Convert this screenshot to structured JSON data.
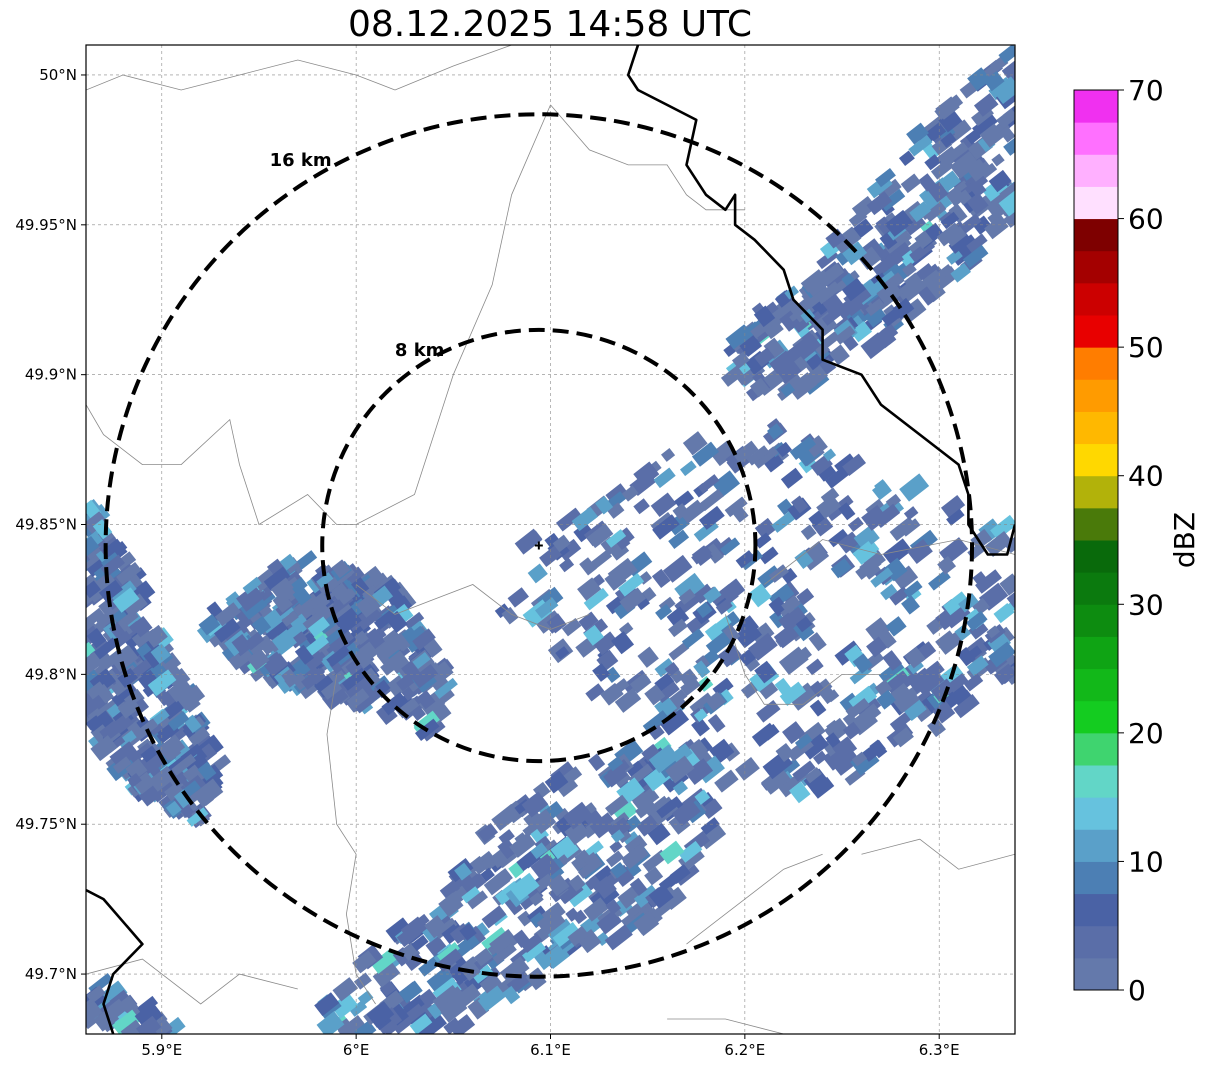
{
  "title": "08.12.2025 14:58 UTC",
  "map": {
    "lon_range": [
      5.861,
      6.339
    ],
    "lat_range": [
      49.68,
      50.01
    ],
    "lon_ticks": [
      {
        "value": 5.9,
        "label": "5.9°E"
      },
      {
        "value": 6.0,
        "label": "6°E"
      },
      {
        "value": 6.1,
        "label": "6.1°E"
      },
      {
        "value": 6.2,
        "label": "6.2°E"
      },
      {
        "value": 6.3,
        "label": "6.3°E"
      }
    ],
    "lat_ticks": [
      {
        "value": 50.0,
        "label": "50°N"
      },
      {
        "value": 49.95,
        "label": "49.95°N"
      },
      {
        "value": 49.9,
        "label": "49.9°N"
      },
      {
        "value": 49.85,
        "label": "49.85°N"
      },
      {
        "value": 49.8,
        "label": "49.8°N"
      },
      {
        "value": 49.75,
        "label": "49.75°N"
      },
      {
        "value": 49.7,
        "label": "49.7°N"
      }
    ],
    "center": {
      "lon": 6.094,
      "lat": 49.843
    },
    "range_rings": [
      {
        "radius_km": 8,
        "label": "8 km"
      },
      {
        "radius_km": 16,
        "label": "16 km"
      }
    ],
    "gridlines": true
  },
  "colorbar": {
    "label": "dBZ",
    "min": 0,
    "max": 70,
    "tick_labels": [
      "0",
      "10",
      "20",
      "30",
      "40",
      "50",
      "60",
      "70"
    ],
    "colors": [
      "#6479ab",
      "#5a6ea8",
      "#4a62a5",
      "#4c7fb4",
      "#5aa0c9",
      "#66c2de",
      "#62d6c7",
      "#3fd46f",
      "#14cc20",
      "#12b819",
      "#0fa414",
      "#0d8c10",
      "#0b7a0e",
      "#096a0b",
      "#4a7a0a",
      "#b2b20a",
      "#ffd800",
      "#ffb800",
      "#ff9b00",
      "#ff7d00",
      "#e80000",
      "#cc0000",
      "#a40000",
      "#7e0000",
      "#ffe0ff",
      "#ffb0ff",
      "#ff70ff",
      "#f030f0"
    ]
  },
  "echo_regions": [
    {
      "name": "northeast-band",
      "points": [
        [
          6.19,
          49.91
        ],
        [
          6.24,
          49.94
        ],
        [
          6.3,
          49.99
        ],
        [
          6.34,
          50.01
        ],
        [
          6.339,
          49.95
        ],
        [
          6.27,
          49.91
        ],
        [
          6.22,
          49.89
        ],
        [
          6.19,
          49.9
        ]
      ]
    },
    {
      "name": "central-east-band",
      "points": [
        [
          6.08,
          49.84
        ],
        [
          6.12,
          49.86
        ],
        [
          6.16,
          49.88
        ],
        [
          6.21,
          49.885
        ],
        [
          6.26,
          49.87
        ],
        [
          6.3,
          49.86
        ],
        [
          6.339,
          49.85
        ],
        [
          6.339,
          49.8
        ],
        [
          6.3,
          49.78
        ],
        [
          6.25,
          49.76
        ],
        [
          6.2,
          49.76
        ],
        [
          6.15,
          49.78
        ],
        [
          6.11,
          49.8
        ],
        [
          6.07,
          49.82
        ]
      ]
    },
    {
      "name": "south-band",
      "points": [
        [
          5.98,
          49.69
        ],
        [
          6.03,
          49.72
        ],
        [
          6.07,
          49.75
        ],
        [
          6.11,
          49.77
        ],
        [
          6.17,
          49.78
        ],
        [
          6.19,
          49.75
        ],
        [
          6.16,
          49.72
        ],
        [
          6.1,
          49.7
        ],
        [
          6.05,
          49.68
        ],
        [
          5.98,
          49.68
        ]
      ]
    },
    {
      "name": "west-edge-band",
      "points": [
        [
          5.861,
          49.86
        ],
        [
          5.88,
          49.84
        ],
        [
          5.91,
          49.8
        ],
        [
          5.93,
          49.77
        ],
        [
          5.92,
          49.75
        ],
        [
          5.89,
          49.76
        ],
        [
          5.861,
          49.78
        ]
      ]
    },
    {
      "name": "southwest-corner",
      "points": [
        [
          5.861,
          49.7
        ],
        [
          5.89,
          49.69
        ],
        [
          5.91,
          49.68
        ],
        [
          5.861,
          49.68
        ]
      ]
    },
    {
      "name": "west-scatter",
      "points": [
        [
          5.92,
          49.82
        ],
        [
          5.97,
          49.84
        ],
        [
          6.02,
          49.83
        ],
        [
          6.05,
          49.8
        ],
        [
          6.04,
          49.78
        ],
        [
          6.0,
          49.79
        ],
        [
          5.95,
          49.8
        ],
        [
          5.93,
          49.81
        ]
      ]
    }
  ],
  "hollow_regions": [
    {
      "name": "gap-1",
      "points": [
        [
          6.145,
          49.845
        ],
        [
          6.155,
          49.85
        ],
        [
          6.165,
          49.845
        ],
        [
          6.155,
          49.835
        ]
      ]
    },
    {
      "name": "gap-2",
      "points": [
        [
          6.23,
          49.83
        ],
        [
          6.26,
          49.835
        ],
        [
          6.27,
          49.81
        ],
        [
          6.24,
          49.805
        ]
      ]
    },
    {
      "name": "gap-3",
      "points": [
        [
          6.185,
          49.79
        ],
        [
          6.205,
          49.795
        ],
        [
          6.21,
          49.775
        ],
        [
          6.19,
          49.775
        ]
      ]
    }
  ],
  "thin_borders": [
    [
      [
        5.861,
        49.995
      ],
      [
        5.88,
        50.0
      ],
      [
        5.91,
        49.995
      ],
      [
        5.94,
        50.0
      ],
      [
        5.97,
        50.005
      ],
      [
        6.0,
        50.0
      ],
      [
        6.02,
        49.995
      ]
    ],
    [
      [
        6.02,
        49.995
      ],
      [
        6.05,
        50.003
      ],
      [
        6.08,
        50.01
      ]
    ],
    [
      [
        5.861,
        49.89
      ],
      [
        5.87,
        49.88
      ],
      [
        5.89,
        49.87
      ],
      [
        5.9,
        49.87
      ],
      [
        5.91,
        49.87
      ],
      [
        5.935,
        49.885
      ],
      [
        5.94,
        49.87
      ],
      [
        5.95,
        49.85
      ],
      [
        5.975,
        49.86
      ],
      [
        5.99,
        49.85
      ],
      [
        6.0,
        49.85
      ],
      [
        6.03,
        49.86
      ],
      [
        6.04,
        49.88
      ],
      [
        6.05,
        49.9
      ],
      [
        6.07,
        49.93
      ],
      [
        6.08,
        49.96
      ],
      [
        6.1,
        49.99
      ]
    ],
    [
      [
        6.1,
        49.99
      ],
      [
        6.12,
        49.975
      ],
      [
        6.14,
        49.97
      ],
      [
        6.16,
        49.97
      ],
      [
        6.17,
        49.96
      ],
      [
        6.18,
        49.955
      ],
      [
        6.2,
        49.955
      ]
    ],
    [
      [
        6.0,
        49.83
      ],
      [
        6.02,
        49.82
      ],
      [
        6.04,
        49.825
      ],
      [
        6.06,
        49.83
      ],
      [
        6.08,
        49.82
      ],
      [
        6.1,
        49.815
      ],
      [
        6.12,
        49.82
      ]
    ],
    [
      [
        6.19,
        49.82
      ],
      [
        6.2,
        49.8
      ],
      [
        6.21,
        49.79
      ],
      [
        6.23,
        49.79
      ],
      [
        6.25,
        49.8
      ],
      [
        6.27,
        49.8
      ]
    ],
    [
      [
        6.21,
        49.83
      ],
      [
        6.24,
        49.845
      ],
      [
        6.27,
        49.84
      ],
      [
        6.31,
        49.845
      ],
      [
        6.339,
        49.84
      ]
    ],
    [
      [
        5.99,
        49.8
      ],
      [
        5.985,
        49.78
      ],
      [
        5.99,
        49.75
      ],
      [
        6.0,
        49.74
      ],
      [
        5.995,
        49.72
      ],
      [
        6.0,
        49.7
      ],
      [
        6.01,
        49.69
      ]
    ],
    [
      [
        5.861,
        49.7
      ],
      [
        5.89,
        49.705
      ],
      [
        5.92,
        49.69
      ],
      [
        5.94,
        49.7
      ],
      [
        5.97,
        49.695
      ]
    ],
    [
      [
        6.17,
        49.71
      ],
      [
        6.19,
        49.72
      ],
      [
        6.22,
        49.735
      ],
      [
        6.24,
        49.74
      ]
    ],
    [
      [
        6.26,
        49.74
      ],
      [
        6.29,
        49.745
      ],
      [
        6.31,
        49.735
      ],
      [
        6.339,
        49.74
      ]
    ],
    [
      [
        6.16,
        49.685
      ],
      [
        6.19,
        49.685
      ],
      [
        6.22,
        49.68
      ],
      [
        6.25,
        49.68
      ]
    ]
  ],
  "thick_borders": [
    [
      [
        6.145,
        50.01
      ],
      [
        6.14,
        50.0
      ],
      [
        6.145,
        49.995
      ],
      [
        6.16,
        49.99
      ],
      [
        6.175,
        49.985
      ],
      [
        6.17,
        49.97
      ],
      [
        6.18,
        49.96
      ],
      [
        6.19,
        49.955
      ],
      [
        6.195,
        49.96
      ],
      [
        6.195,
        49.95
      ],
      [
        6.205,
        49.945
      ],
      [
        6.22,
        49.935
      ],
      [
        6.225,
        49.925
      ],
      [
        6.24,
        49.915
      ],
      [
        6.24,
        49.905
      ],
      [
        6.26,
        49.9
      ],
      [
        6.27,
        49.89
      ],
      [
        6.29,
        49.88
      ],
      [
        6.31,
        49.87
      ],
      [
        6.315,
        49.86
      ],
      [
        6.315,
        49.85
      ],
      [
        6.325,
        49.84
      ],
      [
        6.335,
        49.84
      ],
      [
        6.339,
        49.85
      ]
    ],
    [
      [
        5.861,
        49.728
      ],
      [
        5.87,
        49.725
      ],
      [
        5.89,
        49.71
      ],
      [
        5.875,
        49.7
      ],
      [
        5.87,
        49.69
      ],
      [
        5.875,
        49.68
      ]
    ]
  ]
}
